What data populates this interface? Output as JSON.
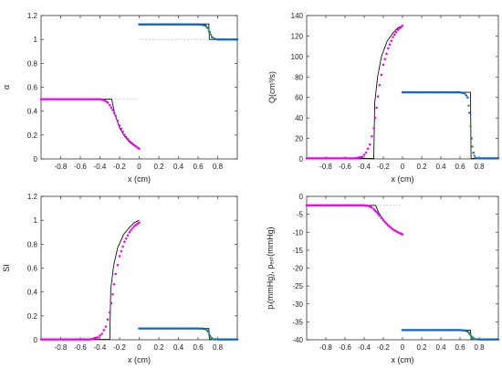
{
  "chart_data": [
    {
      "type": "line",
      "xlabel": "x (cm)",
      "ylabel": "α",
      "xlim": [
        -1,
        1
      ],
      "ylim": [
        0,
        1.2
      ],
      "xticks": [
        "-0.8",
        "-0.6",
        "-0.4",
        "-0.2",
        "0",
        "0.2",
        "0.4",
        "0.6",
        "0.8"
      ],
      "yticks": [
        "0",
        "0.2",
        "0.4",
        "0.6",
        "0.8",
        "1",
        "1.2"
      ],
      "grid": false,
      "series": [
        {
          "style": "dotted",
          "color": "#bbbbbb",
          "points": [
            [
              -1,
              0.5
            ],
            [
              0,
              0.5
            ]
          ]
        },
        {
          "style": "dotted",
          "color": "#bbbbbb",
          "points": [
            [
              0,
              1.0
            ],
            [
              1,
              1.0
            ]
          ]
        },
        {
          "style": "solid",
          "color": "#111111",
          "points": [
            [
              -1,
              0.5
            ],
            [
              -0.28,
              0.5
            ],
            [
              -0.25,
              0.38
            ],
            [
              -0.2,
              0.26
            ],
            [
              -0.15,
              0.19
            ],
            [
              -0.1,
              0.14
            ],
            [
              -0.05,
              0.11
            ],
            [
              0,
              0.09
            ]
          ]
        },
        {
          "style": "solid",
          "color": "#111111",
          "points": [
            [
              0,
              1.13
            ],
            [
              0.71,
              1.13
            ],
            [
              0.715,
              1.0
            ],
            [
              1,
              1.0
            ]
          ]
        },
        {
          "style": "dots",
          "color": "#ee00ee",
          "points": [
            [
              -1,
              0.5
            ],
            [
              -0.4,
              0.5
            ],
            [
              -0.35,
              0.49
            ],
            [
              -0.32,
              0.47
            ],
            [
              -0.3,
              0.45
            ],
            [
              -0.27,
              0.41
            ],
            [
              -0.24,
              0.36
            ],
            [
              -0.2,
              0.28
            ],
            [
              -0.15,
              0.2
            ],
            [
              -0.1,
              0.15
            ],
            [
              -0.05,
              0.115
            ],
            [
              0,
              0.085
            ]
          ]
        },
        {
          "style": "dots",
          "color": "#1565c0",
          "points": [
            [
              0,
              1.125
            ],
            [
              0.6,
              1.125
            ],
            [
              0.65,
              1.122
            ],
            [
              0.68,
              1.115
            ],
            [
              0.7,
              1.095
            ],
            [
              0.72,
              1.06
            ],
            [
              0.74,
              1.02
            ],
            [
              0.76,
              1.005
            ],
            [
              0.8,
              1.0
            ],
            [
              1,
              1.0
            ]
          ]
        },
        {
          "style": "dots",
          "color": "#2ca02c",
          "sparse": true,
          "points": [
            [
              0.69,
              1.1
            ],
            [
              0.71,
              1.07
            ],
            [
              0.73,
              1.04
            ],
            [
              0.75,
              1.015
            ]
          ]
        }
      ]
    },
    {
      "type": "line",
      "xlabel": "x (cm)",
      "ylabel": "Q(cm³/s)",
      "xlim": [
        -1,
        1
      ],
      "ylim": [
        0,
        140
      ],
      "xticks": [
        "-0.8",
        "-0.6",
        "-0.4",
        "-0.2",
        "0",
        "0.2",
        "0.4",
        "0.6",
        "0.8"
      ],
      "yticks": [
        "0",
        "20",
        "40",
        "60",
        "80",
        "100",
        "120",
        "140"
      ],
      "grid": false,
      "series": [
        {
          "style": "solid",
          "color": "#111111",
          "points": [
            [
              -1,
              0.5
            ],
            [
              -0.3,
              0.5
            ],
            [
              -0.29,
              55
            ],
            [
              -0.26,
              80
            ],
            [
              -0.22,
              100
            ],
            [
              -0.16,
              115
            ],
            [
              -0.1,
              123
            ],
            [
              -0.05,
              128
            ],
            [
              0,
              130
            ]
          ]
        },
        {
          "style": "solid",
          "color": "#111111",
          "points": [
            [
              0,
              65
            ],
            [
              0.71,
              65
            ],
            [
              0.715,
              0.5
            ],
            [
              1,
              0.5
            ]
          ]
        },
        {
          "style": "dots",
          "color": "#ee00ee",
          "points": [
            [
              -1,
              0.5
            ],
            [
              -0.5,
              0.5
            ],
            [
              -0.42,
              2
            ],
            [
              -0.38,
              6
            ],
            [
              -0.34,
              14
            ],
            [
              -0.3,
              30
            ],
            [
              -0.27,
              50
            ],
            [
              -0.24,
              72
            ],
            [
              -0.2,
              92
            ],
            [
              -0.15,
              108
            ],
            [
              -0.1,
              119
            ],
            [
              -0.05,
              126
            ],
            [
              0,
              130
            ]
          ]
        },
        {
          "style": "dots",
          "color": "#1565c0",
          "points": [
            [
              0,
              65
            ],
            [
              0.6,
              65
            ],
            [
              0.65,
              64
            ],
            [
              0.68,
              60
            ],
            [
              0.7,
              45
            ],
            [
              0.72,
              20
            ],
            [
              0.74,
              6
            ],
            [
              0.76,
              1
            ],
            [
              0.8,
              0.5
            ],
            [
              1,
              0.5
            ]
          ]
        },
        {
          "style": "dots",
          "color": "#2ca02c",
          "sparse": true,
          "points": [
            [
              0.69,
              52
            ],
            [
              0.71,
              32
            ],
            [
              0.73,
              12
            ],
            [
              0.75,
              3
            ]
          ]
        }
      ]
    },
    {
      "type": "line",
      "xlabel": "x (cm)",
      "ylabel": "SI",
      "xlim": [
        -1,
        1
      ],
      "ylim": [
        0,
        1.2
      ],
      "xticks": [
        "-0.8",
        "-0.6",
        "-0.4",
        "-0.2",
        "0",
        "0.2",
        "0.4",
        "0.6",
        "0.8"
      ],
      "yticks": [
        "0",
        "0.2",
        "0.4",
        "0.6",
        "0.8",
        "1",
        "1.2"
      ],
      "grid": false,
      "series": [
        {
          "style": "solid",
          "color": "#111111",
          "points": [
            [
              -1,
              0.003
            ],
            [
              -0.3,
              0.003
            ],
            [
              -0.29,
              0.42
            ],
            [
              -0.26,
              0.62
            ],
            [
              -0.22,
              0.77
            ],
            [
              -0.16,
              0.88
            ],
            [
              -0.1,
              0.94
            ],
            [
              -0.05,
              0.98
            ],
            [
              0,
              1.0
            ]
          ]
        },
        {
          "style": "solid",
          "color": "#111111",
          "points": [
            [
              0,
              0.095
            ],
            [
              0.71,
              0.095
            ],
            [
              0.715,
              0.003
            ],
            [
              1,
              0.003
            ]
          ]
        },
        {
          "style": "dots",
          "color": "#ee00ee",
          "points": [
            [
              -1,
              0.003
            ],
            [
              -0.5,
              0.003
            ],
            [
              -0.42,
              0.02
            ],
            [
              -0.38,
              0.05
            ],
            [
              -0.34,
              0.11
            ],
            [
              -0.3,
              0.23
            ],
            [
              -0.27,
              0.38
            ],
            [
              -0.24,
              0.55
            ],
            [
              -0.2,
              0.7
            ],
            [
              -0.15,
              0.82
            ],
            [
              -0.1,
              0.9
            ],
            [
              -0.05,
              0.95
            ],
            [
              0,
              0.98
            ]
          ]
        },
        {
          "style": "dots",
          "color": "#1565c0",
          "points": [
            [
              0,
              0.095
            ],
            [
              0.6,
              0.095
            ],
            [
              0.65,
              0.093
            ],
            [
              0.68,
              0.088
            ],
            [
              0.7,
              0.07
            ],
            [
              0.72,
              0.035
            ],
            [
              0.74,
              0.012
            ],
            [
              0.76,
              0.004
            ],
            [
              0.8,
              0.003
            ],
            [
              1,
              0.003
            ]
          ]
        },
        {
          "style": "dots",
          "color": "#2ca02c",
          "sparse": true,
          "points": [
            [
              0.69,
              0.08
            ],
            [
              0.71,
              0.05
            ],
            [
              0.73,
              0.02
            ],
            [
              0.75,
              0.007
            ]
          ]
        }
      ]
    },
    {
      "type": "line",
      "xlabel": "x (cm)",
      "ylabel": "pᵢ(mmHg), pₑₓₜ(mmHg)",
      "xlim": [
        -1,
        1
      ],
      "ylim": [
        -40,
        0
      ],
      "xticks": [
        "-0.8",
        "-0.6",
        "-0.4",
        "-0.2",
        "0",
        "0.2",
        "0.4",
        "0.6",
        "0.8"
      ],
      "yticks": [
        "-40",
        "-35",
        "-30",
        "-25",
        "-20",
        "-15",
        "-10",
        "-5",
        "0"
      ],
      "grid": false,
      "series": [
        {
          "style": "dotted",
          "color": "#bbbbbb",
          "points": [
            [
              -1,
              -2.5
            ],
            [
              0,
              -2.5
            ]
          ]
        },
        {
          "style": "solid",
          "color": "#111111",
          "points": [
            [
              -1,
              -2.5
            ],
            [
              -0.28,
              -2.5
            ],
            [
              -0.25,
              -4.5
            ],
            [
              -0.2,
              -6.5
            ],
            [
              -0.15,
              -8.0
            ],
            [
              -0.1,
              -9.2
            ],
            [
              -0.05,
              -10.0
            ],
            [
              0,
              -10.5
            ]
          ]
        },
        {
          "style": "solid",
          "color": "#111111",
          "points": [
            [
              0,
              -37.3
            ],
            [
              0.71,
              -37.3
            ],
            [
              0.715,
              -39.9
            ],
            [
              1,
              -39.9
            ]
          ]
        },
        {
          "style": "dots",
          "color": "#ee00ee",
          "points": [
            [
              -1,
              -2.5
            ],
            [
              -0.4,
              -2.5
            ],
            [
              -0.35,
              -2.7
            ],
            [
              -0.32,
              -3.1
            ],
            [
              -0.3,
              -3.6
            ],
            [
              -0.27,
              -4.4
            ],
            [
              -0.24,
              -5.4
            ],
            [
              -0.2,
              -6.7
            ],
            [
              -0.15,
              -8.1
            ],
            [
              -0.1,
              -9.2
            ],
            [
              -0.05,
              -10.0
            ],
            [
              0,
              -10.6
            ]
          ]
        },
        {
          "style": "dots",
          "color": "#1565c0",
          "points": [
            [
              0,
              -37.3
            ],
            [
              0.6,
              -37.3
            ],
            [
              0.65,
              -37.4
            ],
            [
              0.68,
              -37.7
            ],
            [
              0.7,
              -38.3
            ],
            [
              0.72,
              -39.1
            ],
            [
              0.74,
              -39.6
            ],
            [
              0.76,
              -39.85
            ],
            [
              0.8,
              -39.9
            ],
            [
              1,
              -39.9
            ]
          ]
        },
        {
          "style": "dots",
          "color": "#2ca02c",
          "sparse": true,
          "points": [
            [
              0.69,
              -38.0
            ],
            [
              0.71,
              -38.7
            ],
            [
              0.73,
              -39.4
            ],
            [
              0.75,
              -39.75
            ]
          ]
        }
      ]
    }
  ]
}
